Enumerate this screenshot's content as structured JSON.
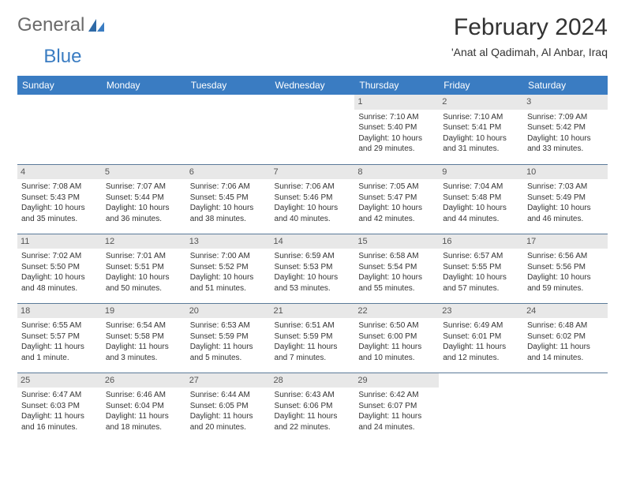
{
  "logo": {
    "text1": "General",
    "text2": "Blue"
  },
  "title": "February 2024",
  "location": "'Anat al Qadimah, Al Anbar, Iraq",
  "header_bg": "#3a7cc2",
  "dayNames": [
    "Sunday",
    "Monday",
    "Tuesday",
    "Wednesday",
    "Thursday",
    "Friday",
    "Saturday"
  ],
  "weeks": [
    [
      {
        "n": "",
        "sunrise": "",
        "sunset": "",
        "daylight1": "",
        "daylight2": ""
      },
      {
        "n": "",
        "sunrise": "",
        "sunset": "",
        "daylight1": "",
        "daylight2": ""
      },
      {
        "n": "",
        "sunrise": "",
        "sunset": "",
        "daylight1": "",
        "daylight2": ""
      },
      {
        "n": "",
        "sunrise": "",
        "sunset": "",
        "daylight1": "",
        "daylight2": ""
      },
      {
        "n": "1",
        "sunrise": "Sunrise: 7:10 AM",
        "sunset": "Sunset: 5:40 PM",
        "daylight1": "Daylight: 10 hours",
        "daylight2": "and 29 minutes."
      },
      {
        "n": "2",
        "sunrise": "Sunrise: 7:10 AM",
        "sunset": "Sunset: 5:41 PM",
        "daylight1": "Daylight: 10 hours",
        "daylight2": "and 31 minutes."
      },
      {
        "n": "3",
        "sunrise": "Sunrise: 7:09 AM",
        "sunset": "Sunset: 5:42 PM",
        "daylight1": "Daylight: 10 hours",
        "daylight2": "and 33 minutes."
      }
    ],
    [
      {
        "n": "4",
        "sunrise": "Sunrise: 7:08 AM",
        "sunset": "Sunset: 5:43 PM",
        "daylight1": "Daylight: 10 hours",
        "daylight2": "and 35 minutes."
      },
      {
        "n": "5",
        "sunrise": "Sunrise: 7:07 AM",
        "sunset": "Sunset: 5:44 PM",
        "daylight1": "Daylight: 10 hours",
        "daylight2": "and 36 minutes."
      },
      {
        "n": "6",
        "sunrise": "Sunrise: 7:06 AM",
        "sunset": "Sunset: 5:45 PM",
        "daylight1": "Daylight: 10 hours",
        "daylight2": "and 38 minutes."
      },
      {
        "n": "7",
        "sunrise": "Sunrise: 7:06 AM",
        "sunset": "Sunset: 5:46 PM",
        "daylight1": "Daylight: 10 hours",
        "daylight2": "and 40 minutes."
      },
      {
        "n": "8",
        "sunrise": "Sunrise: 7:05 AM",
        "sunset": "Sunset: 5:47 PM",
        "daylight1": "Daylight: 10 hours",
        "daylight2": "and 42 minutes."
      },
      {
        "n": "9",
        "sunrise": "Sunrise: 7:04 AM",
        "sunset": "Sunset: 5:48 PM",
        "daylight1": "Daylight: 10 hours",
        "daylight2": "and 44 minutes."
      },
      {
        "n": "10",
        "sunrise": "Sunrise: 7:03 AM",
        "sunset": "Sunset: 5:49 PM",
        "daylight1": "Daylight: 10 hours",
        "daylight2": "and 46 minutes."
      }
    ],
    [
      {
        "n": "11",
        "sunrise": "Sunrise: 7:02 AM",
        "sunset": "Sunset: 5:50 PM",
        "daylight1": "Daylight: 10 hours",
        "daylight2": "and 48 minutes."
      },
      {
        "n": "12",
        "sunrise": "Sunrise: 7:01 AM",
        "sunset": "Sunset: 5:51 PM",
        "daylight1": "Daylight: 10 hours",
        "daylight2": "and 50 minutes."
      },
      {
        "n": "13",
        "sunrise": "Sunrise: 7:00 AM",
        "sunset": "Sunset: 5:52 PM",
        "daylight1": "Daylight: 10 hours",
        "daylight2": "and 51 minutes."
      },
      {
        "n": "14",
        "sunrise": "Sunrise: 6:59 AM",
        "sunset": "Sunset: 5:53 PM",
        "daylight1": "Daylight: 10 hours",
        "daylight2": "and 53 minutes."
      },
      {
        "n": "15",
        "sunrise": "Sunrise: 6:58 AM",
        "sunset": "Sunset: 5:54 PM",
        "daylight1": "Daylight: 10 hours",
        "daylight2": "and 55 minutes."
      },
      {
        "n": "16",
        "sunrise": "Sunrise: 6:57 AM",
        "sunset": "Sunset: 5:55 PM",
        "daylight1": "Daylight: 10 hours",
        "daylight2": "and 57 minutes."
      },
      {
        "n": "17",
        "sunrise": "Sunrise: 6:56 AM",
        "sunset": "Sunset: 5:56 PM",
        "daylight1": "Daylight: 10 hours",
        "daylight2": "and 59 minutes."
      }
    ],
    [
      {
        "n": "18",
        "sunrise": "Sunrise: 6:55 AM",
        "sunset": "Sunset: 5:57 PM",
        "daylight1": "Daylight: 11 hours",
        "daylight2": "and 1 minute."
      },
      {
        "n": "19",
        "sunrise": "Sunrise: 6:54 AM",
        "sunset": "Sunset: 5:58 PM",
        "daylight1": "Daylight: 11 hours",
        "daylight2": "and 3 minutes."
      },
      {
        "n": "20",
        "sunrise": "Sunrise: 6:53 AM",
        "sunset": "Sunset: 5:59 PM",
        "daylight1": "Daylight: 11 hours",
        "daylight2": "and 5 minutes."
      },
      {
        "n": "21",
        "sunrise": "Sunrise: 6:51 AM",
        "sunset": "Sunset: 5:59 PM",
        "daylight1": "Daylight: 11 hours",
        "daylight2": "and 7 minutes."
      },
      {
        "n": "22",
        "sunrise": "Sunrise: 6:50 AM",
        "sunset": "Sunset: 6:00 PM",
        "daylight1": "Daylight: 11 hours",
        "daylight2": "and 10 minutes."
      },
      {
        "n": "23",
        "sunrise": "Sunrise: 6:49 AM",
        "sunset": "Sunset: 6:01 PM",
        "daylight1": "Daylight: 11 hours",
        "daylight2": "and 12 minutes."
      },
      {
        "n": "24",
        "sunrise": "Sunrise: 6:48 AM",
        "sunset": "Sunset: 6:02 PM",
        "daylight1": "Daylight: 11 hours",
        "daylight2": "and 14 minutes."
      }
    ],
    [
      {
        "n": "25",
        "sunrise": "Sunrise: 6:47 AM",
        "sunset": "Sunset: 6:03 PM",
        "daylight1": "Daylight: 11 hours",
        "daylight2": "and 16 minutes."
      },
      {
        "n": "26",
        "sunrise": "Sunrise: 6:46 AM",
        "sunset": "Sunset: 6:04 PM",
        "daylight1": "Daylight: 11 hours",
        "daylight2": "and 18 minutes."
      },
      {
        "n": "27",
        "sunrise": "Sunrise: 6:44 AM",
        "sunset": "Sunset: 6:05 PM",
        "daylight1": "Daylight: 11 hours",
        "daylight2": "and 20 minutes."
      },
      {
        "n": "28",
        "sunrise": "Sunrise: 6:43 AM",
        "sunset": "Sunset: 6:06 PM",
        "daylight1": "Daylight: 11 hours",
        "daylight2": "and 22 minutes."
      },
      {
        "n": "29",
        "sunrise": "Sunrise: 6:42 AM",
        "sunset": "Sunset: 6:07 PM",
        "daylight1": "Daylight: 11 hours",
        "daylight2": "and 24 minutes."
      },
      {
        "n": "",
        "sunrise": "",
        "sunset": "",
        "daylight1": "",
        "daylight2": ""
      },
      {
        "n": "",
        "sunrise": "",
        "sunset": "",
        "daylight1": "",
        "daylight2": ""
      }
    ]
  ]
}
